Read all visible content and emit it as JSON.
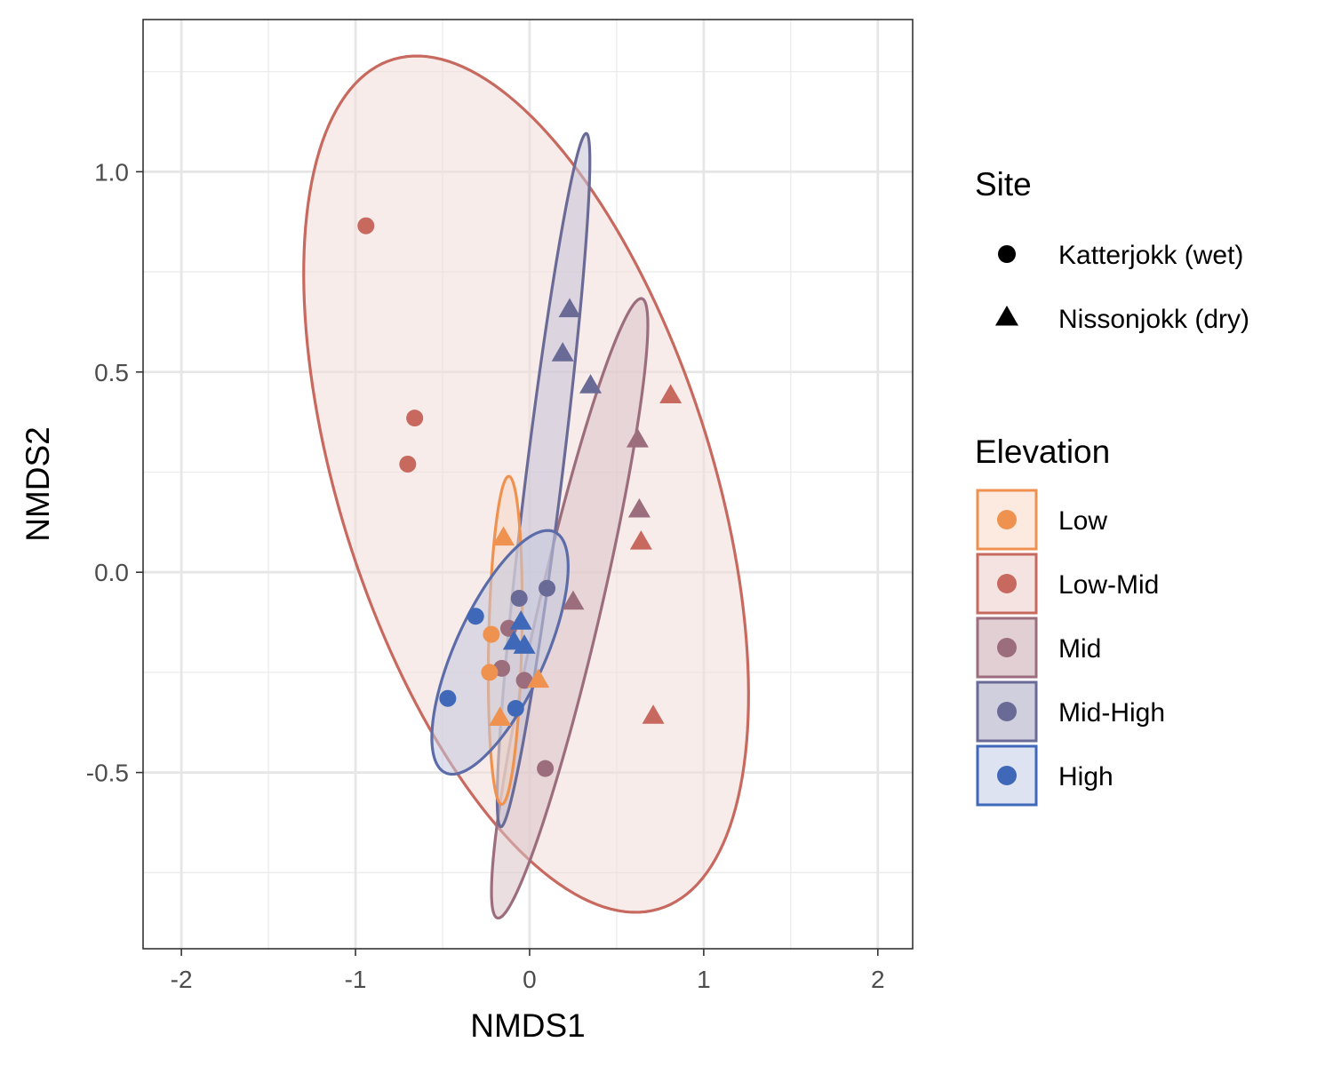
{
  "chart_data": {
    "type": "scatter",
    "title": "",
    "xlabel": "NMDS1",
    "ylabel": "NMDS2",
    "xlim": [
      -2.22,
      2.2
    ],
    "ylim": [
      -0.94,
      1.38
    ],
    "x_ticks": [
      -2,
      -1,
      0,
      1,
      2
    ],
    "x_tick_labels": [
      "-2",
      "-1",
      "0",
      "1",
      "2"
    ],
    "y_ticks": [
      -0.5,
      0.0,
      0.5,
      1.0
    ],
    "y_tick_labels": [
      "-0.5",
      "0.0",
      "0.5",
      "1.0"
    ],
    "grid": true,
    "legend_position": "right",
    "shape_legend": {
      "title": "Site",
      "entries": [
        {
          "label": "Katterjokk (wet)",
          "shape": "circle"
        },
        {
          "label": "Nissonjokk (dry)",
          "shape": "triangle"
        }
      ]
    },
    "color_legend": {
      "title": "Elevation",
      "entries": [
        {
          "label": "Low",
          "color": "#F0924F"
        },
        {
          "label": "Low-Mid",
          "color": "#C8695F"
        },
        {
          "label": "Mid",
          "color": "#9C6E7D"
        },
        {
          "label": "Mid-High",
          "color": "#6A6A96"
        },
        {
          "label": "High",
          "color": "#3F69B8"
        }
      ]
    },
    "ellipses": [
      {
        "group": "Low-Mid",
        "center": [
          -0.02,
          0.22
        ],
        "radii": [
          1.45,
          0.82
        ],
        "angle_deg": -35,
        "color": "#C8695F",
        "fill": "#F2DCDA"
      },
      {
        "group": "Mid",
        "center": [
          0.23,
          -0.09
        ],
        "radii": [
          0.88,
          0.16
        ],
        "angle_deg": 61,
        "color": "#9C6E7D",
        "fill": "#D9C3C8"
      },
      {
        "group": "Mid-High",
        "center": [
          0.08,
          0.23
        ],
        "radii": [
          0.9,
          0.1
        ],
        "angle_deg": 74,
        "color": "#6A6A96",
        "fill": "#C4C3D5"
      },
      {
        "group": "Low",
        "center": [
          -0.14,
          -0.17
        ],
        "radii": [
          0.41,
          0.095
        ],
        "angle_deg": 87,
        "color": "#F0924F",
        "fill": "#F6D7C3"
      },
      {
        "group": "High",
        "center": [
          -0.17,
          -0.2
        ],
        "radii": [
          0.46,
          0.185
        ],
        "angle_deg": 35,
        "color": "#5C6CA8",
        "fill": "#C2C8DE"
      }
    ],
    "points": [
      {
        "x": -0.94,
        "y": 0.865,
        "group": "Low-Mid",
        "site": "Katterjokk (wet)"
      },
      {
        "x": -0.66,
        "y": 0.385,
        "group": "Low-Mid",
        "site": "Katterjokk (wet)"
      },
      {
        "x": -0.7,
        "y": 0.27,
        "group": "Low-Mid",
        "site": "Katterjokk (wet)"
      },
      {
        "x": 0.81,
        "y": 0.44,
        "group": "Low-Mid",
        "site": "Nissonjokk (dry)"
      },
      {
        "x": 0.64,
        "y": 0.075,
        "group": "Low-Mid",
        "site": "Nissonjokk (dry)"
      },
      {
        "x": 0.71,
        "y": -0.36,
        "group": "Low-Mid",
        "site": "Nissonjokk (dry)"
      },
      {
        "x": 0.62,
        "y": 0.33,
        "group": "Mid",
        "site": "Nissonjokk (dry)"
      },
      {
        "x": 0.63,
        "y": 0.155,
        "group": "Mid",
        "site": "Nissonjokk (dry)"
      },
      {
        "x": 0.25,
        "y": -0.075,
        "group": "Mid",
        "site": "Nissonjokk (dry)"
      },
      {
        "x": -0.12,
        "y": -0.14,
        "group": "Mid",
        "site": "Katterjokk (wet)"
      },
      {
        "x": -0.16,
        "y": -0.24,
        "group": "Mid",
        "site": "Katterjokk (wet)"
      },
      {
        "x": -0.03,
        "y": -0.27,
        "group": "Mid",
        "site": "Katterjokk (wet)"
      },
      {
        "x": 0.09,
        "y": -0.49,
        "group": "Mid",
        "site": "Katterjokk (wet)"
      },
      {
        "x": 0.23,
        "y": 0.655,
        "group": "Mid-High",
        "site": "Nissonjokk (dry)"
      },
      {
        "x": 0.19,
        "y": 0.545,
        "group": "Mid-High",
        "site": "Nissonjokk (dry)"
      },
      {
        "x": 0.35,
        "y": 0.465,
        "group": "Mid-High",
        "site": "Nissonjokk (dry)"
      },
      {
        "x": -0.06,
        "y": -0.065,
        "group": "Mid-High",
        "site": "Katterjokk (wet)"
      },
      {
        "x": 0.1,
        "y": -0.04,
        "group": "Mid-High",
        "site": "Katterjokk (wet)"
      },
      {
        "x": -0.15,
        "y": 0.085,
        "group": "Low",
        "site": "Nissonjokk (dry)"
      },
      {
        "x": -0.22,
        "y": -0.155,
        "group": "Low",
        "site": "Katterjokk (wet)"
      },
      {
        "x": -0.23,
        "y": -0.25,
        "group": "Low",
        "site": "Katterjokk (wet)"
      },
      {
        "x": 0.05,
        "y": -0.27,
        "group": "Low",
        "site": "Nissonjokk (dry)"
      },
      {
        "x": -0.17,
        "y": -0.365,
        "group": "Low",
        "site": "Nissonjokk (dry)"
      },
      {
        "x": -0.31,
        "y": -0.11,
        "group": "High",
        "site": "Katterjokk (wet)"
      },
      {
        "x": -0.47,
        "y": -0.315,
        "group": "High",
        "site": "Katterjokk (wet)"
      },
      {
        "x": -0.08,
        "y": -0.34,
        "group": "High",
        "site": "Katterjokk (wet)"
      },
      {
        "x": -0.05,
        "y": -0.125,
        "group": "High",
        "site": "Nissonjokk (dry)"
      },
      {
        "x": -0.09,
        "y": -0.175,
        "group": "High",
        "site": "Nissonjokk (dry)"
      },
      {
        "x": -0.03,
        "y": -0.185,
        "group": "High",
        "site": "Nissonjokk (dry)"
      }
    ]
  }
}
